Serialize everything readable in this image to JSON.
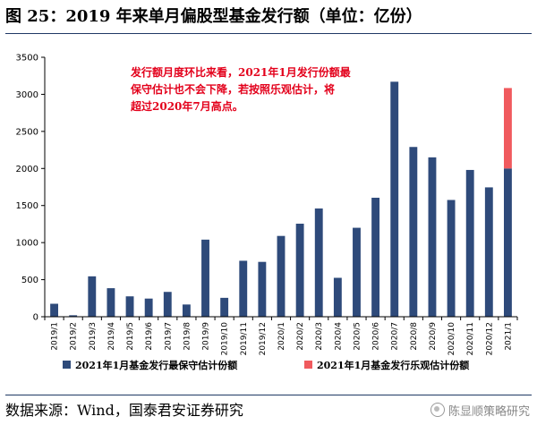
{
  "header": {
    "title": "图 25：2019 年来单月偏股型基金发行额（单位：亿份）"
  },
  "footer": {
    "source": "数据来源：Wind，国泰君安证券研究",
    "watermark": "陈显顺策略研究"
  },
  "colors": {
    "conservative": "#2e4a7a",
    "optimistic": "#f05a5e",
    "annotation": "#e3001b",
    "rule": "#1f3864"
  },
  "chart_data": {
    "type": "bar",
    "stacked": true,
    "categories": [
      "2019/1",
      "2019/2",
      "2019/3",
      "2019/4",
      "2019/5",
      "2019/6",
      "2019/7",
      "2019/8",
      "2019/9",
      "2019/10",
      "2019/11",
      "2019/12",
      "2020/1",
      "2020/2",
      "2020/3",
      "2020/4",
      "2020/5",
      "2020/6",
      "2020/7",
      "2020/8",
      "2020/9",
      "2020/10",
      "2020/11",
      "2020/12",
      "2021/1"
    ],
    "series": [
      {
        "name": "2021年1月基金发行最保守估计份额",
        "color": "#2e4a7a",
        "values": [
          175,
          20,
          545,
          385,
          275,
          245,
          335,
          165,
          1040,
          255,
          755,
          740,
          1090,
          1255,
          1460,
          525,
          1200,
          1605,
          3170,
          2290,
          2150,
          1575,
          1980,
          1745,
          2000
        ]
      },
      {
        "name": "2021年1月基金发行乐观估计份额",
        "color": "#f05a5e",
        "values": [
          0,
          0,
          0,
          0,
          0,
          0,
          0,
          0,
          0,
          0,
          0,
          0,
          0,
          0,
          0,
          0,
          0,
          0,
          0,
          0,
          0,
          0,
          0,
          0,
          1085
        ]
      }
    ],
    "ylim": [
      0,
      3500
    ],
    "yticks": [
      0,
      500,
      1000,
      1500,
      2000,
      2500,
      3000,
      3500
    ],
    "legend": "bottom",
    "grid": false,
    "annotation": {
      "lines": [
        "发行额月度环比来看，2021年1月发行份额最",
        "保守估计也不会下降，若按照乐观估计，将",
        "超过2020年7月高点。"
      ]
    }
  }
}
